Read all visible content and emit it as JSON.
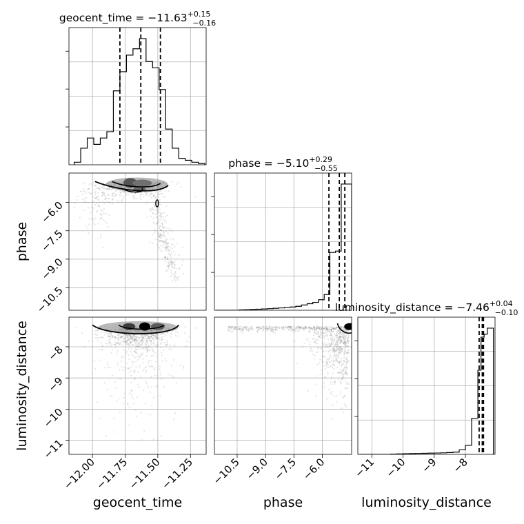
{
  "chart_data": {
    "type": "corner",
    "parameters": [
      {
        "name": "geocent_time",
        "axis_label": "geocent_time",
        "range": [
          -12.18,
          -11.13
        ],
        "ticks": [
          -12.0,
          -11.75,
          -11.5,
          -11.25
        ],
        "tick_labels": [
          "−12.00",
          "−11.75",
          "−11.50",
          "−11.25"
        ],
        "median": -11.63,
        "title": {
          "main": "geocent_time = −11.63",
          "upper": "+0.15",
          "lower": "−0.16"
        },
        "quantiles": [
          -11.79,
          -11.63,
          -11.48
        ],
        "histogram": {
          "edges": [
            -12.14,
            -12.09,
            -12.04,
            -11.99,
            -11.94,
            -11.89,
            -11.84,
            -11.79,
            -11.74,
            -11.69,
            -11.64,
            -11.59,
            -11.54,
            -11.49,
            -11.44,
            -11.39,
            -11.34,
            -11.29,
            -11.24,
            -11.19,
            -11.14
          ],
          "counts": [
            0.02,
            0.13,
            0.21,
            0.16,
            0.21,
            0.26,
            0.58,
            0.73,
            0.86,
            0.91,
            0.99,
            0.81,
            0.76,
            0.59,
            0.28,
            0.13,
            0.05,
            0.035,
            0.02,
            0.01
          ]
        }
      },
      {
        "name": "phase",
        "axis_label": "phase",
        "range": [
          -11.7,
          -4.45
        ],
        "ticks": [
          -10.5,
          -9.0,
          -7.5,
          -6.0
        ],
        "tick_labels": [
          "−10.5",
          "−9.0",
          "−7.5",
          "−6.0"
        ],
        "median": -5.1,
        "title": {
          "main": "phase = −5.10",
          "upper": "+0.29",
          "lower": "−0.55"
        },
        "quantiles": [
          -5.65,
          -5.1,
          -4.81
        ],
        "histogram": {
          "edges": [
            -11.6,
            -11.3,
            -11.0,
            -10.7,
            -10.4,
            -10.1,
            -9.8,
            -9.5,
            -9.2,
            -8.9,
            -8.6,
            -8.3,
            -8.0,
            -7.7,
            -7.4,
            -7.1,
            -6.8,
            -6.5,
            -6.2,
            -5.9,
            -5.6,
            -5.3,
            -5.0,
            -4.7,
            -4.45
          ],
          "counts": [
            0,
            0,
            0,
            0,
            0.003,
            0.004,
            0.006,
            0.008,
            0.01,
            0.012,
            0.015,
            0.018,
            0.022,
            0.025,
            0.03,
            0.04,
            0.05,
            0.06,
            0.08,
            0.12,
            0.44,
            0.45,
            0.96,
            0.96
          ]
        }
      },
      {
        "name": "luminosity_distance",
        "axis_label": "luminosity_distance",
        "range": [
          -11.45,
          -7.05
        ],
        "ticks": [
          -11,
          -10,
          -9,
          -8
        ],
        "tick_labels": [
          "−11",
          "−10",
          "−9",
          "−8"
        ],
        "median": -7.46,
        "title": {
          "main": "luminosity_distance = −7.46",
          "upper": "+0.04",
          "lower": "−0.10"
        },
        "quantiles": [
          -7.56,
          -7.46,
          -7.42
        ],
        "histogram": {
          "edges": [
            -11.4,
            -11.2,
            -11.0,
            -10.8,
            -10.6,
            -10.4,
            -10.2,
            -10.0,
            -9.8,
            -9.6,
            -9.4,
            -9.2,
            -9.0,
            -8.8,
            -8.6,
            -8.4,
            -8.2,
            -8.0,
            -7.8,
            -7.6,
            -7.5,
            -7.4,
            -7.3,
            -7.2,
            -7.1
          ],
          "counts": [
            0,
            0,
            0,
            0,
            0,
            0.002,
            0.003,
            0.004,
            0.005,
            0.006,
            0.007,
            0.008,
            0.009,
            0.01,
            0.012,
            0.015,
            0.03,
            0.06,
            0.24,
            0.56,
            0.78,
            0.8,
            0.84,
            0.84
          ]
        }
      }
    ],
    "contour_levels": 3,
    "grid": true
  }
}
